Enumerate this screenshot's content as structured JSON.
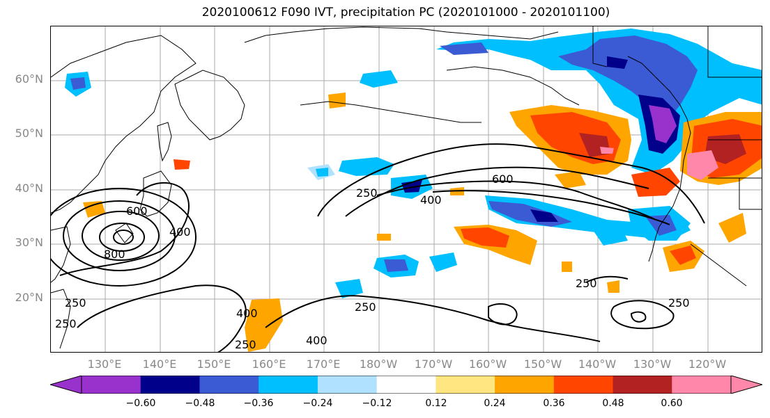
{
  "title": "2020100612 F090 IVT, precipitation PC (2020101000 - 2020101100)",
  "latitude_labels": [
    "60°N",
    "50°N",
    "40°N",
    "30°N",
    "20°N"
  ],
  "longitude_labels": [
    "130°E",
    "140°E",
    "150°E",
    "160°E",
    "170°E",
    "180°W",
    "170°W",
    "160°W",
    "150°W",
    "140°W",
    "130°W",
    "120°W"
  ],
  "colorbar": {
    "tick_labels": [
      "−0.60",
      "−0.48",
      "−0.36",
      "−0.24",
      "−0.12",
      "0.12",
      "0.24",
      "0.36",
      "0.48",
      "0.60"
    ],
    "colors": [
      "#9932cc",
      "#00008b",
      "#3a5bd4",
      "#00bfff",
      "#b0e2ff",
      "#ffffff",
      "#ffe680",
      "#ffa500",
      "#ff4500",
      "#b22222",
      "#ff88aa"
    ]
  },
  "ivt_contour_labels": [
    "600",
    "400",
    "800",
    "250",
    "250",
    "400",
    "600",
    "250",
    "400",
    "250",
    "400",
    "250",
    "250",
    "250"
  ]
}
